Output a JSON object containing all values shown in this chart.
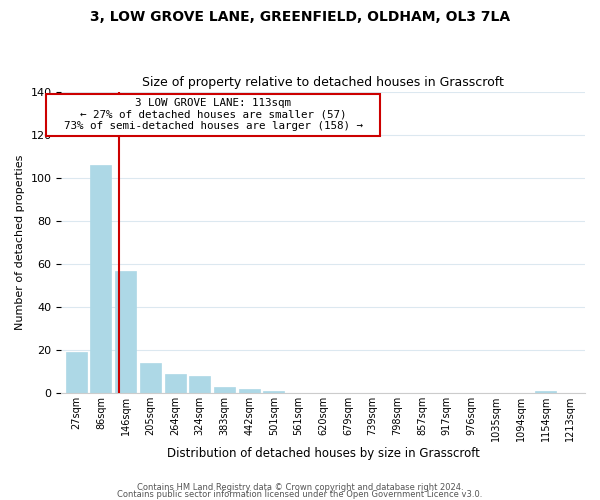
{
  "title": "3, LOW GROVE LANE, GREENFIELD, OLDHAM, OL3 7LA",
  "subtitle": "Size of property relative to detached houses in Grasscroft",
  "xlabel": "Distribution of detached houses by size in Grasscroft",
  "ylabel": "Number of detached properties",
  "bar_labels": [
    "27sqm",
    "86sqm",
    "146sqm",
    "205sqm",
    "264sqm",
    "324sqm",
    "383sqm",
    "442sqm",
    "501sqm",
    "561sqm",
    "620sqm",
    "679sqm",
    "739sqm",
    "798sqm",
    "857sqm",
    "917sqm",
    "976sqm",
    "1035sqm",
    "1094sqm",
    "1154sqm",
    "1213sqm"
  ],
  "bar_values": [
    19,
    106,
    57,
    14,
    9,
    8,
    3,
    2,
    1,
    0,
    0,
    0,
    0,
    0,
    0,
    0,
    0,
    0,
    0,
    1,
    0
  ],
  "bar_color": "#add8e6",
  "vline_x": 1.73,
  "vline_color": "#cc0000",
  "ylim": [
    0,
    140
  ],
  "yticks": [
    0,
    20,
    40,
    60,
    80,
    100,
    120,
    140
  ],
  "annotation_title": "3 LOW GROVE LANE: 113sqm",
  "annotation_line1": "← 27% of detached houses are smaller (57)",
  "annotation_line2": "73% of semi-detached houses are larger (158) →",
  "footer_line1": "Contains HM Land Registry data © Crown copyright and database right 2024.",
  "footer_line2": "Contains public sector information licensed under the Open Government Licence v3.0.",
  "background_color": "#ffffff",
  "grid_color": "#dce8f0",
  "title_fontsize": 10,
  "subtitle_fontsize": 9
}
